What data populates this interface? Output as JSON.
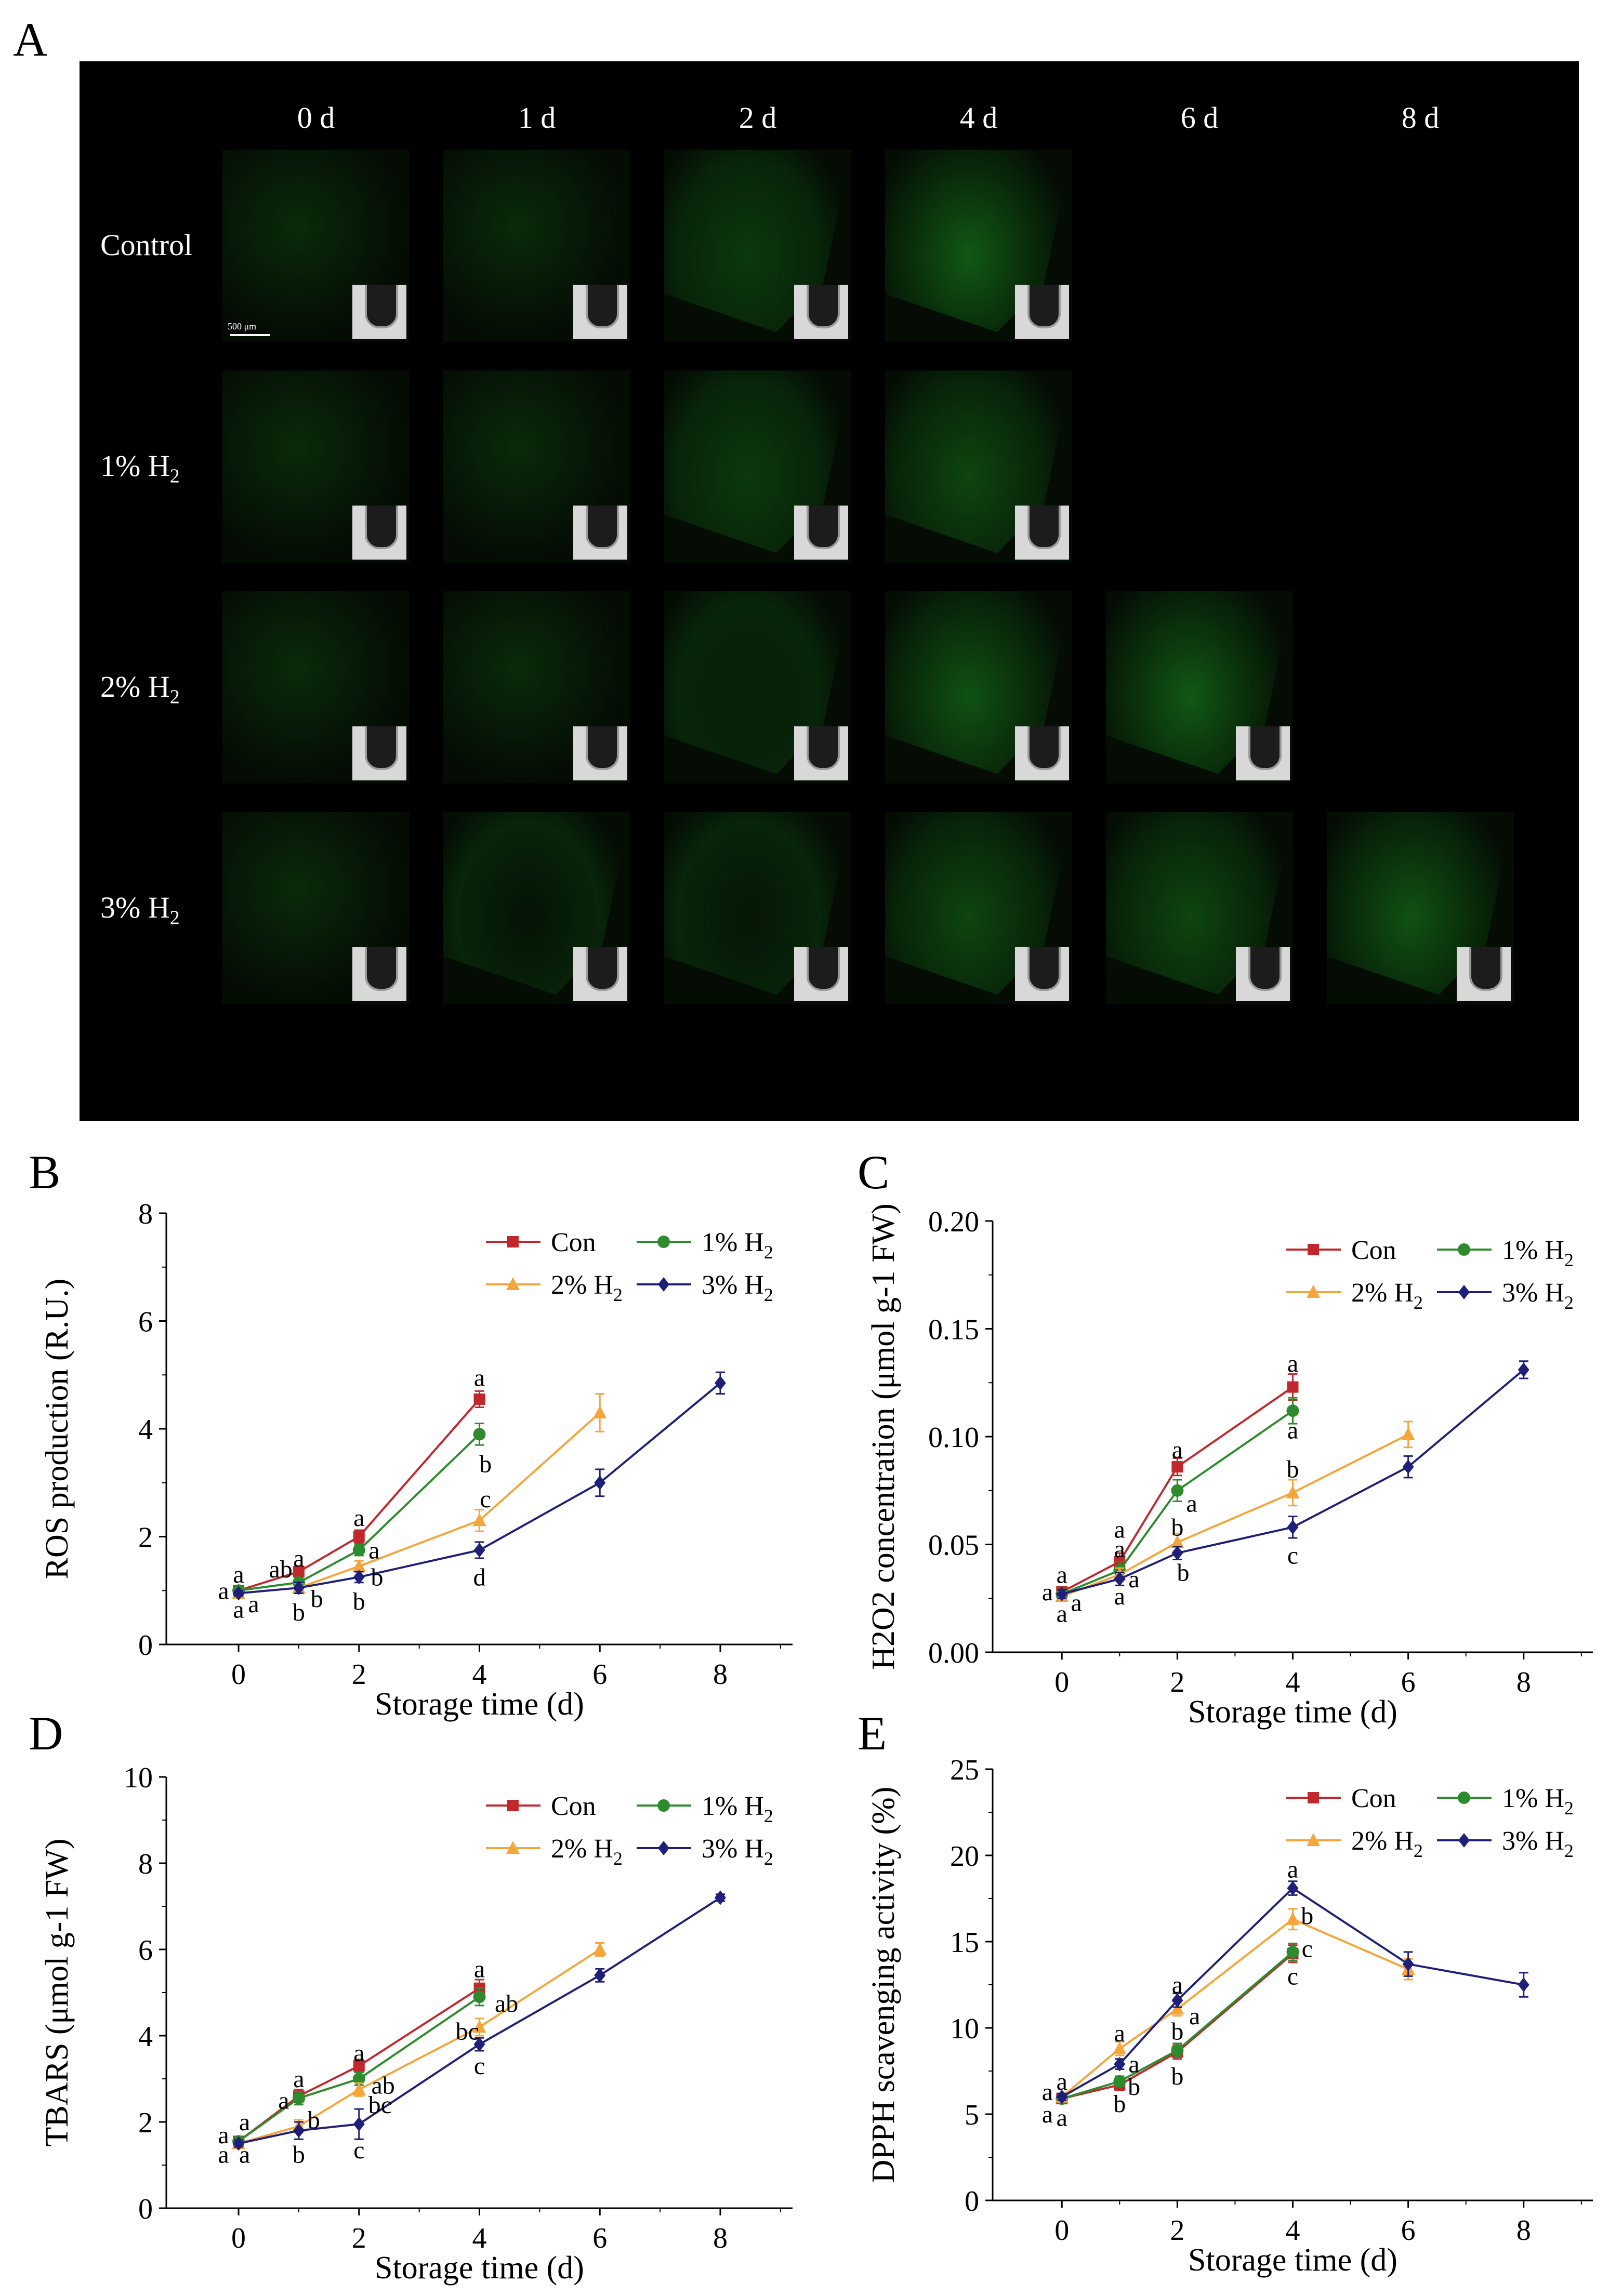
{
  "panel_a": {
    "letter": "A",
    "columns": [
      "0 d",
      "1 d",
      "2 d",
      "4 d",
      "6 d",
      "8 d"
    ],
    "rows": [
      {
        "label": "Control",
        "sub": "",
        "tiles": 4
      },
      {
        "label": "1% H",
        "sub": "2",
        "tiles": 4
      },
      {
        "label": "2% H",
        "sub": "2",
        "tiles": 5
      },
      {
        "label": "3% H",
        "sub": "2",
        "tiles": 6
      }
    ],
    "scale_bar": "500 μm",
    "colors": {
      "background": "#000000",
      "fluorescence": "#22c02a"
    }
  },
  "legend": {
    "series": [
      {
        "key": "con",
        "label": "Con",
        "sub": "",
        "color": "#c0282d",
        "marker": "square"
      },
      {
        "key": "h1",
        "label": "1% H",
        "sub": "2",
        "color": "#2d8a2d",
        "marker": "circle"
      },
      {
        "key": "h2",
        "label": "2% H",
        "sub": "2",
        "color": "#f5a53a",
        "marker": "triangle"
      },
      {
        "key": "h3",
        "label": "3% H",
        "sub": "2",
        "color": "#1f1f7a",
        "marker": "diamond"
      }
    ]
  },
  "chart_data": [
    {
      "panel": "B",
      "type": "line",
      "xlabel": "Storage time (d)",
      "ylabel": "ROS production (R.U.)",
      "ylim": [
        0,
        8
      ],
      "yticks": [
        "0",
        "2",
        "4",
        "6",
        "8"
      ],
      "xlim": [
        -1.2,
        9.2
      ],
      "xticks": [
        "0",
        "2",
        "4",
        "6",
        "8"
      ],
      "legend_position": "top-right",
      "series": [
        {
          "key": "con",
          "x": [
            0,
            1,
            2,
            4
          ],
          "y": [
            1.0,
            1.35,
            2.0,
            4.55
          ],
          "err": [
            0.05,
            0.1,
            0.12,
            0.15
          ]
        },
        {
          "key": "h1",
          "x": [
            0,
            1,
            2,
            4
          ],
          "y": [
            1.0,
            1.15,
            1.75,
            3.9
          ],
          "err": [
            0.05,
            0.08,
            0.1,
            0.2
          ]
        },
        {
          "key": "h2",
          "x": [
            0,
            1,
            2,
            4,
            6
          ],
          "y": [
            0.95,
            1.05,
            1.45,
            2.3,
            4.3
          ],
          "err": [
            0.05,
            0.08,
            0.1,
            0.2,
            0.35
          ]
        },
        {
          "key": "h3",
          "x": [
            0,
            1,
            2,
            4,
            6,
            8
          ],
          "y": [
            0.95,
            1.05,
            1.25,
            1.75,
            3.0,
            4.85
          ],
          "err": [
            0.05,
            0.1,
            0.1,
            0.15,
            0.25,
            0.2
          ]
        }
      ],
      "annotations": [
        {
          "text": "a",
          "x": 0,
          "y": 1.3
        },
        {
          "text": "a",
          "x": -0.25,
          "y": 1.0
        },
        {
          "text": "a",
          "x": 0,
          "y": 0.65
        },
        {
          "text": "a",
          "x": 0.25,
          "y": 0.75
        },
        {
          "text": "ab",
          "x": 0.7,
          "y": 1.4
        },
        {
          "text": "a",
          "x": 1.0,
          "y": 1.6
        },
        {
          "text": "b",
          "x": 1.0,
          "y": 0.6
        },
        {
          "text": "b",
          "x": 1.3,
          "y": 0.85
        },
        {
          "text": "a",
          "x": 2.0,
          "y": 2.35
        },
        {
          "text": "a",
          "x": 2.25,
          "y": 1.75
        },
        {
          "text": "b",
          "x": 2.3,
          "y": 1.25
        },
        {
          "text": "b",
          "x": 2.0,
          "y": 0.8
        },
        {
          "text": "a",
          "x": 4.0,
          "y": 4.95
        },
        {
          "text": "b",
          "x": 4.1,
          "y": 3.35
        },
        {
          "text": "c",
          "x": 4.1,
          "y": 2.7
        },
        {
          "text": "d",
          "x": 4.0,
          "y": 1.25
        }
      ]
    },
    {
      "panel": "C",
      "type": "line",
      "xlabel": "Storage time (d)",
      "ylabel": "H2O2 concentration (μmol g-1 FW)",
      "ylim": [
        0,
        0.2
      ],
      "yticks": [
        "0.00",
        "0.05",
        "0.10",
        "0.15",
        "0.20"
      ],
      "xlim": [
        -1.2,
        9.2
      ],
      "xticks": [
        "0",
        "2",
        "4",
        "6",
        "8"
      ],
      "legend_position": "top-right",
      "series": [
        {
          "key": "con",
          "x": [
            0,
            1,
            2,
            4
          ],
          "y": [
            0.028,
            0.042,
            0.086,
            0.123
          ],
          "err": [
            0.002,
            0.004,
            0.004,
            0.006
          ]
        },
        {
          "key": "h1",
          "x": [
            0,
            1,
            2,
            4
          ],
          "y": [
            0.027,
            0.038,
            0.075,
            0.112
          ],
          "err": [
            0.002,
            0.004,
            0.005,
            0.006
          ]
        },
        {
          "key": "h2",
          "x": [
            0,
            1,
            2,
            4,
            6
          ],
          "y": [
            0.026,
            0.036,
            0.051,
            0.074,
            0.101
          ],
          "err": [
            0.002,
            0.003,
            0.004,
            0.006,
            0.006
          ]
        },
        {
          "key": "h3",
          "x": [
            0,
            1,
            2,
            4,
            6,
            8
          ],
          "y": [
            0.027,
            0.034,
            0.046,
            0.058,
            0.086,
            0.131
          ],
          "err": [
            0.002,
            0.003,
            0.003,
            0.005,
            0.005,
            0.004
          ]
        }
      ],
      "annotations": [
        {
          "text": "a",
          "x": 0,
          "y": 0.036
        },
        {
          "text": "a",
          "x": -0.25,
          "y": 0.028
        },
        {
          "text": "a",
          "x": 0,
          "y": 0.018
        },
        {
          "text": "a",
          "x": 0.25,
          "y": 0.023
        },
        {
          "text": "a",
          "x": 1.0,
          "y": 0.048
        },
        {
          "text": "a",
          "x": 1.0,
          "y": 0.057
        },
        {
          "text": "a",
          "x": 1.25,
          "y": 0.034
        },
        {
          "text": "a",
          "x": 1.0,
          "y": 0.026
        },
        {
          "text": "a",
          "x": 2.0,
          "y": 0.094
        },
        {
          "text": "a",
          "x": 2.25,
          "y": 0.069
        },
        {
          "text": "b",
          "x": 2.0,
          "y": 0.058
        },
        {
          "text": "b",
          "x": 2.1,
          "y": 0.037
        },
        {
          "text": "a",
          "x": 4.0,
          "y": 0.134
        },
        {
          "text": "a",
          "x": 4.0,
          "y": 0.103
        },
        {
          "text": "b",
          "x": 4.0,
          "y": 0.085
        },
        {
          "text": "c",
          "x": 4.0,
          "y": 0.045
        }
      ]
    },
    {
      "panel": "D",
      "type": "line",
      "xlabel": "Storage time (d)",
      "ylabel": "TBARS (μmol g-1 FW)",
      "ylim": [
        0,
        10
      ],
      "yticks": [
        "0",
        "2",
        "4",
        "6",
        "8",
        "10"
      ],
      "xlim": [
        -1.2,
        9.2
      ],
      "xticks": [
        "0",
        "2",
        "4",
        "6",
        "8"
      ],
      "legend_position": "top-right",
      "series": [
        {
          "key": "con",
          "x": [
            0,
            1,
            2,
            4
          ],
          "y": [
            1.55,
            2.6,
            3.3,
            5.1
          ],
          "err": [
            0.08,
            0.15,
            0.15,
            0.2
          ]
        },
        {
          "key": "h1",
          "x": [
            0,
            1,
            2,
            4
          ],
          "y": [
            1.55,
            2.55,
            3.0,
            4.9
          ],
          "err": [
            0.08,
            0.15,
            0.15,
            0.2
          ]
        },
        {
          "key": "h2",
          "x": [
            0,
            1,
            2,
            4,
            6
          ],
          "y": [
            1.5,
            1.9,
            2.75,
            4.2,
            6.0
          ],
          "err": [
            0.08,
            0.15,
            0.15,
            0.2,
            0.15
          ]
        },
        {
          "key": "h3",
          "x": [
            0,
            1,
            2,
            4,
            6,
            8
          ],
          "y": [
            1.5,
            1.8,
            1.95,
            3.8,
            5.4,
            7.2
          ],
          "err": [
            0.08,
            0.2,
            0.35,
            0.15,
            0.15,
            0.08
          ]
        }
      ],
      "annotations": [
        {
          "text": "a",
          "x": -0.25,
          "y": 1.7
        },
        {
          "text": "a",
          "x": 0.1,
          "y": 2.0
        },
        {
          "text": "a",
          "x": -0.25,
          "y": 1.25
        },
        {
          "text": "a",
          "x": 0.1,
          "y": 1.25
        },
        {
          "text": "a",
          "x": 0.75,
          "y": 2.5
        },
        {
          "text": "a",
          "x": 1.0,
          "y": 3.0
        },
        {
          "text": "b",
          "x": 1.25,
          "y": 2.05
        },
        {
          "text": "b",
          "x": 1.0,
          "y": 1.25
        },
        {
          "text": "a",
          "x": 2.0,
          "y": 3.6
        },
        {
          "text": "ab",
          "x": 2.4,
          "y": 2.85
        },
        {
          "text": "bc",
          "x": 2.35,
          "y": 2.4
        },
        {
          "text": "c",
          "x": 2.0,
          "y": 1.35
        },
        {
          "text": "a",
          "x": 4.0,
          "y": 5.55
        },
        {
          "text": "ab",
          "x": 4.45,
          "y": 4.75
        },
        {
          "text": "bc",
          "x": 3.8,
          "y": 4.1
        },
        {
          "text": "c",
          "x": 4.0,
          "y": 3.3
        }
      ]
    },
    {
      "panel": "E",
      "type": "line",
      "xlabel": "Storage time (d)",
      "ylabel": "DPPH scavenging activity (%)",
      "ylim": [
        0,
        25
      ],
      "yticks": [
        "0",
        "5",
        "10",
        "15",
        "20",
        "25"
      ],
      "xlim": [
        -1.2,
        9.2
      ],
      "xticks": [
        "0",
        "2",
        "4",
        "6",
        "8"
      ],
      "legend_position": "top-right",
      "series": [
        {
          "key": "con",
          "x": [
            0,
            1,
            2,
            4
          ],
          "y": [
            5.9,
            6.7,
            8.6,
            14.3
          ],
          "err": [
            0.2,
            0.3,
            0.4,
            0.5
          ]
        },
        {
          "key": "h1",
          "x": [
            0,
            1,
            2,
            4
          ],
          "y": [
            5.9,
            6.9,
            8.7,
            14.4
          ],
          "err": [
            0.2,
            0.3,
            0.4,
            0.5
          ]
        },
        {
          "key": "h2",
          "x": [
            0,
            1,
            2,
            4,
            6
          ],
          "y": [
            6.0,
            8.8,
            11.1,
            16.3,
            13.4
          ],
          "err": [
            0.2,
            0.4,
            0.4,
            0.6,
            0.6
          ]
        },
        {
          "key": "h3",
          "x": [
            0,
            1,
            2,
            4,
            6,
            8
          ],
          "y": [
            6.0,
            7.9,
            11.6,
            18.1,
            13.7,
            12.5
          ],
          "err": [
            0.2,
            0.3,
            0.4,
            0.4,
            0.7,
            0.7
          ]
        }
      ],
      "annotations": [
        {
          "text": "a",
          "x": -0.25,
          "y": 6.3
        },
        {
          "text": "a",
          "x": 0,
          "y": 6.9
        },
        {
          "text": "a",
          "x": -0.25,
          "y": 5.0
        },
        {
          "text": "a",
          "x": 0,
          "y": 4.8
        },
        {
          "text": "a",
          "x": 1.0,
          "y": 9.7
        },
        {
          "text": "a",
          "x": 1.25,
          "y": 7.9
        },
        {
          "text": "b",
          "x": 1.25,
          "y": 6.6
        },
        {
          "text": "b",
          "x": 1.0,
          "y": 5.6
        },
        {
          "text": "a",
          "x": 2.0,
          "y": 12.5
        },
        {
          "text": "a",
          "x": 2.3,
          "y": 10.7
        },
        {
          "text": "b",
          "x": 2.0,
          "y": 9.8
        },
        {
          "text": "b",
          "x": 2.0,
          "y": 7.2
        },
        {
          "text": "a",
          "x": 4.0,
          "y": 19.2
        },
        {
          "text": "b",
          "x": 4.25,
          "y": 16.5
        },
        {
          "text": "c",
          "x": 4.25,
          "y": 14.6
        },
        {
          "text": "c",
          "x": 4.0,
          "y": 13.0
        }
      ]
    }
  ]
}
